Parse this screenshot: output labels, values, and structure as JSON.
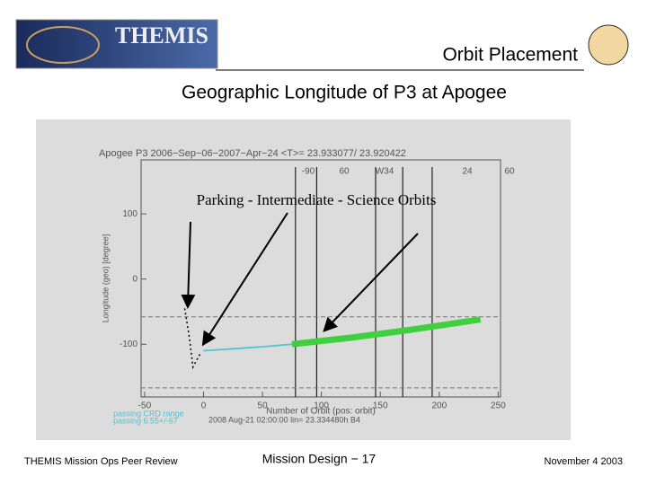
{
  "header": {
    "logo_text": "THEMIS",
    "title": "Orbit Placement",
    "subtitle": "Geographic Longitude of P3 at Apogee"
  },
  "chart_data": {
    "type": "line",
    "title": "Apogee P3 2006−Sep−06−2007−Apr−24 <T>= 23.933077/ 23.920422",
    "x_label": "Number of Orbit (pos: orbit)",
    "y_label": "Longitude (geo) [degree]",
    "annotation": "Parking - Intermediate - Science Orbits",
    "top_labels": [
      "-90",
      "60",
      "W34",
      "24",
      "60"
    ],
    "legend_lines": [
      "passing CRD range",
      "passing 6.55+/-67"
    ],
    "footer_line": "2008 Aug-21 02:00:00 lin= 23.334480h B4",
    "xlim": [
      -53,
      252
    ],
    "ylim": [
      -181,
      183
    ],
    "xticks": [
      -50,
      0,
      50,
      100,
      150,
      200,
      250
    ],
    "yticks": [
      -100,
      0,
      100
    ],
    "vlines": [
      78,
      96,
      146,
      169,
      194
    ],
    "hlines": [
      -58,
      -167
    ],
    "series": [
      {
        "color": "#000000",
        "x": [
          -16,
          -12,
          -9,
          -6,
          -2
        ],
        "values": [
          -45,
          -90,
          -135,
          -125,
          -112
        ]
      },
      {
        "color": "#4fc3d0",
        "x": [
          0,
          25,
          50,
          75
        ],
        "values": [
          -110,
          -107,
          -104,
          -100
        ]
      },
      {
        "color": "#3fcf3f",
        "x": [
          75,
          125,
          175,
          235
        ],
        "values": [
          -100,
          -90,
          -78,
          -62
        ]
      }
    ]
  },
  "footer": {
    "left": "THEMIS Mission Ops Peer Review",
    "center": "Mission Design − 17",
    "right": "November 4 2003"
  }
}
